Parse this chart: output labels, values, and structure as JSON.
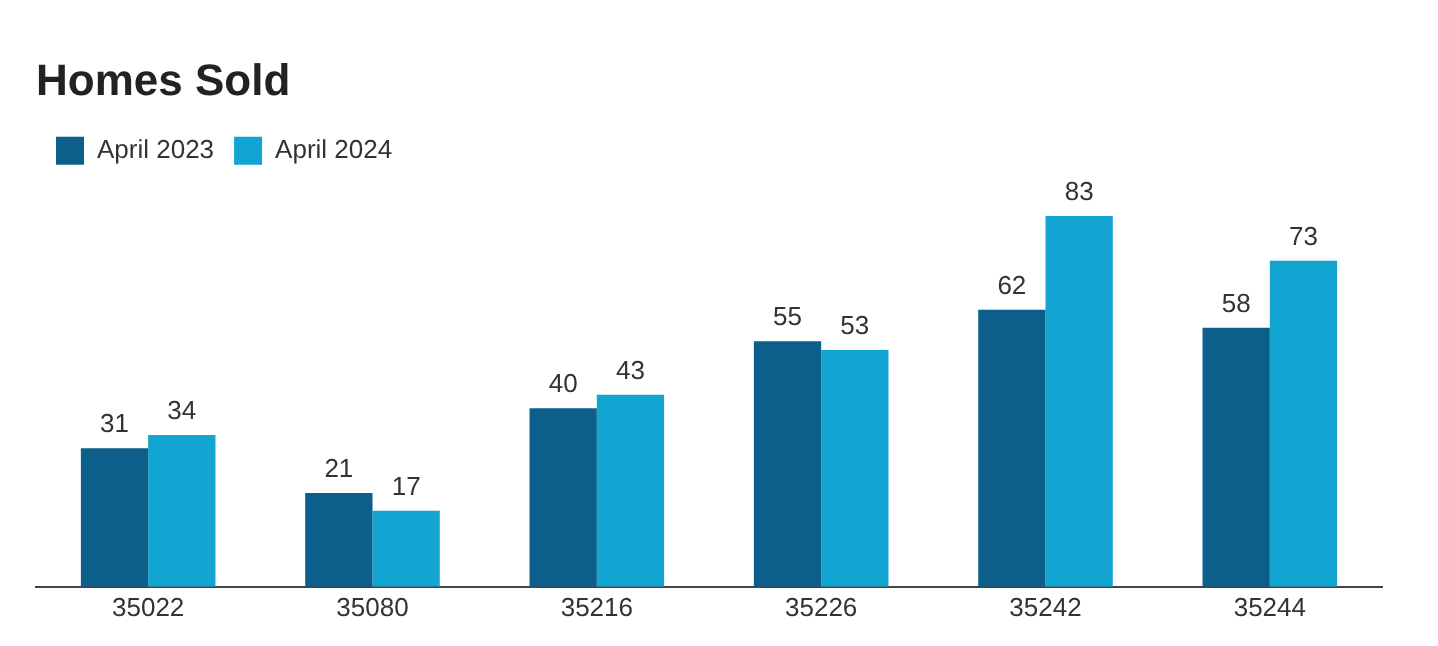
{
  "chart_data": {
    "type": "bar",
    "title": "Homes Sold",
    "categories": [
      "35022",
      "35080",
      "35216",
      "35226",
      "35242",
      "35244"
    ],
    "series": [
      {
        "name": "April 2023",
        "color": "#0b5f8a",
        "values": [
          31,
          21,
          40,
          55,
          62,
          58
        ]
      },
      {
        "name": "April 2024",
        "color": "#12a5d2",
        "values": [
          34,
          17,
          43,
          53,
          83,
          73
        ]
      }
    ],
    "data_labels": true,
    "legend": "top left",
    "tick_labels": "x"
  }
}
